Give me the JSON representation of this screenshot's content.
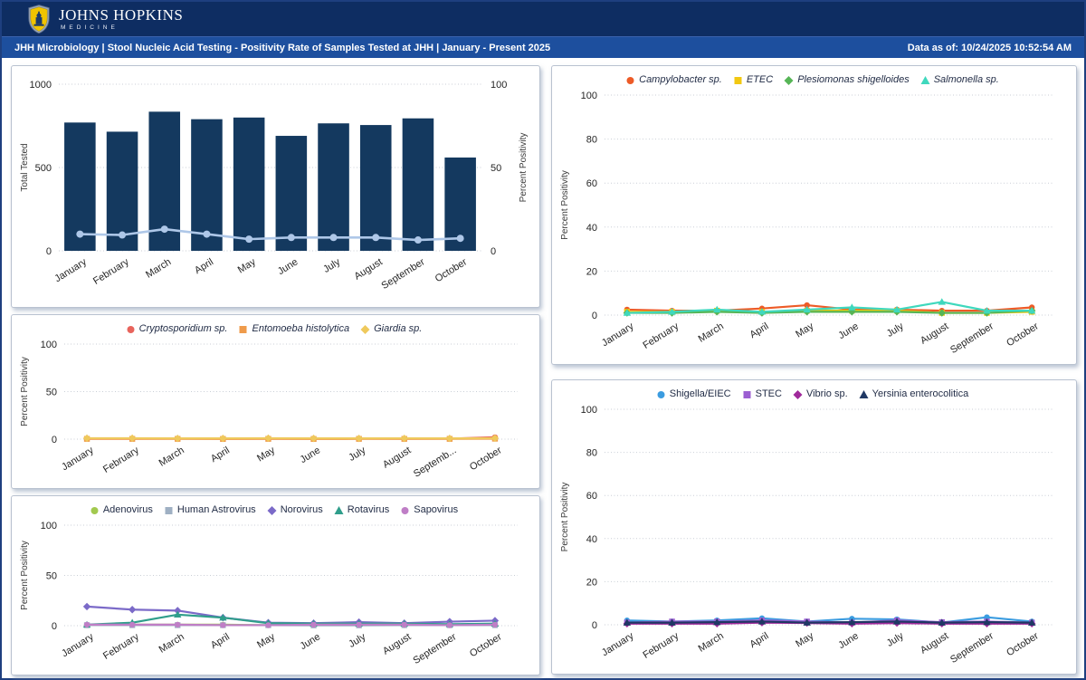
{
  "header": {
    "brand": {
      "line1": "JOHNS HOPKINS",
      "line2": "MEDICINE"
    },
    "title": "JHH Microbiology | Stool Nucleic Acid Testing - Positivity Rate of Samples Tested at JHH | January - Present 2025",
    "data_as_of": "Data as of: 10/24/2025 10:52:54 AM",
    "colors": {
      "top_bar": "#0e2d62",
      "title_bar": "#1d4f9e",
      "shield_gold": "#f1c400"
    }
  },
  "chart_data": [
    {
      "id": "total-tested-combo",
      "type": "bar",
      "subtype": "combo-bar-line",
      "categories": [
        "January",
        "February",
        "March",
        "April",
        "May",
        "June",
        "July",
        "August",
        "September",
        "October"
      ],
      "y_left": {
        "label": "Total Tested",
        "ticks": [
          0,
          500,
          1000
        ],
        "max": 1000
      },
      "y_right": {
        "label": "Percent Positivity",
        "ticks": [
          0,
          50,
          100
        ],
        "max": 100
      },
      "grid": "dotted",
      "legend": false,
      "bars": {
        "name": "Total Tested",
        "color": "#14395f",
        "values": [
          770,
          715,
          835,
          790,
          800,
          690,
          765,
          755,
          795,
          560
        ]
      },
      "series": [
        {
          "name": "Percent Positivity",
          "color": "#aec7e8",
          "marker": "circle",
          "axis": "right",
          "values": [
            10,
            9.5,
            13,
            10,
            7,
            8,
            8,
            8,
            6.5,
            7.5
          ]
        }
      ]
    },
    {
      "id": "bacteria-panel-1",
      "type": "line",
      "categories": [
        "January",
        "February",
        "March",
        "April",
        "May",
        "June",
        "July",
        "August",
        "September",
        "October"
      ],
      "y_left": {
        "label": "Percent Positivity",
        "ticks": [
          0,
          20,
          40,
          60,
          80,
          100
        ],
        "max": 100
      },
      "grid": "dotted",
      "legend": true,
      "legend_italic": true,
      "series": [
        {
          "name": "Campylobacter sp.",
          "color": "#ed5b27",
          "marker": "circle",
          "values": [
            2.5,
            2,
            2,
            3,
            4.5,
            2.5,
            2.5,
            2,
            2,
            3.5
          ]
        },
        {
          "name": "ETEC",
          "color": "#f2c811",
          "marker": "square",
          "values": [
            1.5,
            1.5,
            2,
            1.5,
            2,
            2,
            2,
            1,
            1,
            1.5
          ]
        },
        {
          "name": "Plesiomonas shigelloides",
          "color": "#56b556",
          "marker": "diamond",
          "values": [
            1,
            1,
            1.5,
            1,
            1.5,
            1.5,
            1.5,
            1,
            1,
            2
          ]
        },
        {
          "name": "Salmonella sp.",
          "color": "#3fd8bd",
          "marker": "triangle",
          "values": [
            1,
            1.5,
            2.5,
            1.5,
            2.5,
            3.5,
            2.5,
            6,
            2,
            2
          ]
        }
      ]
    },
    {
      "id": "parasite-panel",
      "type": "line",
      "categories": [
        "January",
        "February",
        "March",
        "April",
        "May",
        "June",
        "July",
        "August",
        "Septemb...",
        "October"
      ],
      "y_left": {
        "label": "Percent Positivity",
        "ticks": [
          0,
          50,
          100
        ],
        "max": 100
      },
      "grid": "dotted",
      "legend": true,
      "legend_italic": true,
      "series": [
        {
          "name": "Cryptosporidium sp.",
          "color": "#e8645c",
          "marker": "circle",
          "values": [
            0.5,
            0.4,
            0.4,
            0.3,
            0.5,
            0.3,
            0.4,
            0.3,
            0.5,
            2
          ]
        },
        {
          "name": "Entomoeba histolytica",
          "color": "#ef9b4b",
          "marker": "square",
          "values": [
            0.3,
            0.3,
            0.3,
            0.2,
            0.3,
            0.2,
            0.3,
            0.3,
            0.3,
            0.5
          ]
        },
        {
          "name": "Giardia sp.",
          "color": "#efc95c",
          "marker": "diamond",
          "values": [
            1,
            1,
            0.8,
            0.8,
            1,
            0.8,
            0.8,
            0.8,
            0.8,
            1
          ]
        }
      ]
    },
    {
      "id": "virus-panel",
      "type": "line",
      "categories": [
        "January",
        "February",
        "March",
        "April",
        "May",
        "June",
        "July",
        "August",
        "September",
        "October"
      ],
      "y_left": {
        "label": "Percent Positivity",
        "ticks": [
          0,
          50,
          100
        ],
        "max": 100
      },
      "grid": "dotted",
      "legend": true,
      "legend_italic": false,
      "series": [
        {
          "name": "Adenovirus",
          "color": "#a2c94f",
          "marker": "circle",
          "values": [
            0.5,
            1,
            1,
            1,
            0.5,
            1,
            1,
            0.5,
            0.5,
            1
          ]
        },
        {
          "name": "Human Astrovirus",
          "color": "#9fb0c3",
          "marker": "square",
          "values": [
            0.5,
            0.5,
            0.5,
            0.5,
            0.5,
            0.3,
            0.3,
            0.5,
            0.5,
            0.5
          ]
        },
        {
          "name": "Norovirus",
          "color": "#7b6ac8",
          "marker": "diamond",
          "values": [
            19,
            16,
            15,
            8,
            3,
            2.5,
            3.5,
            2.5,
            4,
            5
          ]
        },
        {
          "name": "Rotavirus",
          "color": "#2f9e8b",
          "marker": "triangle",
          "values": [
            1,
            3,
            11,
            8,
            2.5,
            2,
            2,
            2,
            1.5,
            2
          ]
        },
        {
          "name": "Sapovirus",
          "color": "#bf7ec6",
          "marker": "circle",
          "values": [
            1,
            1,
            1,
            0.5,
            0.5,
            1,
            1,
            1,
            0.5,
            1
          ]
        }
      ]
    },
    {
      "id": "bacteria-panel-2",
      "type": "line",
      "categories": [
        "January",
        "February",
        "March",
        "April",
        "May",
        "June",
        "July",
        "August",
        "September",
        "October"
      ],
      "y_left": {
        "label": "Percent Positivity",
        "ticks": [
          0,
          20,
          40,
          60,
          80,
          100
        ],
        "max": 100
      },
      "grid": "dotted",
      "legend": true,
      "legend_italic": false,
      "series": [
        {
          "name": "Shigella/EIEC",
          "color": "#3b9ce0",
          "marker": "circle",
          "values": [
            2,
            1.5,
            2,
            3,
            1.5,
            2.8,
            2.5,
            1,
            3.5,
            1.5
          ]
        },
        {
          "name": "STEC",
          "color": "#9c5fd2",
          "marker": "square",
          "values": [
            1,
            1.5,
            1.5,
            2,
            1.5,
            1,
            2,
            1.2,
            1.5,
            1
          ]
        },
        {
          "name": "Vibrio sp.",
          "color": "#a02a9b",
          "marker": "diamond",
          "values": [
            0.5,
            0.5,
            0.5,
            1,
            0.8,
            0.5,
            0.8,
            0.5,
            0.5,
            0.5
          ]
        },
        {
          "name": "Yersinia enterocolitica",
          "color": "#1f3864",
          "marker": "triangle",
          "values": [
            1,
            1,
            1.2,
            1.5,
            1,
            1.2,
            1.5,
            1,
            1.2,
            1
          ]
        }
      ]
    }
  ]
}
